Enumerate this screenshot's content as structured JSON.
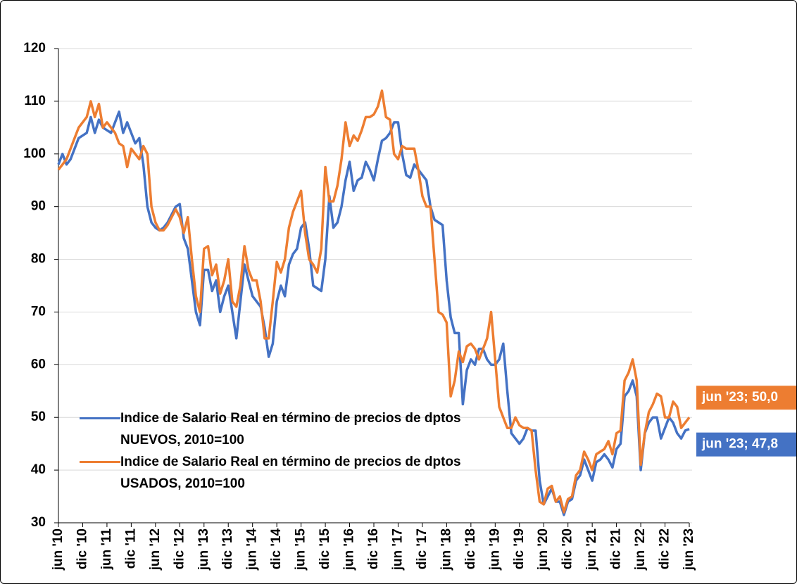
{
  "chart_data": {
    "type": "line",
    "categories": [
      "jun '10",
      null,
      null,
      null,
      null,
      null,
      "dic '10",
      null,
      null,
      null,
      null,
      null,
      "jun '11",
      null,
      null,
      null,
      null,
      null,
      "dic '11",
      null,
      null,
      null,
      null,
      null,
      "jun '12",
      null,
      null,
      null,
      null,
      null,
      "dic '12",
      null,
      null,
      null,
      null,
      null,
      "jun '13",
      null,
      null,
      null,
      null,
      null,
      "dic '13",
      null,
      null,
      null,
      null,
      null,
      "jun '14",
      null,
      null,
      null,
      null,
      null,
      "dic '14",
      null,
      null,
      null,
      null,
      null,
      "jun '15",
      null,
      null,
      null,
      null,
      null,
      "dic '15",
      null,
      null,
      null,
      null,
      null,
      "jun '16",
      null,
      null,
      null,
      null,
      null,
      "dic '16",
      null,
      null,
      null,
      null,
      null,
      "jun '17",
      null,
      null,
      null,
      null,
      null,
      "dic '17",
      null,
      null,
      null,
      null,
      null,
      "jun '18",
      null,
      null,
      null,
      null,
      null,
      "dic '18",
      null,
      null,
      null,
      null,
      null,
      "jun '19",
      null,
      null,
      null,
      null,
      null,
      "dic '19",
      null,
      null,
      null,
      null,
      null,
      "jun '20",
      null,
      null,
      null,
      null,
      null,
      "dic '20",
      null,
      null,
      null,
      null,
      null,
      "jun '21",
      null,
      null,
      null,
      null,
      null,
      "dic '21",
      null,
      null,
      null,
      null,
      null,
      "jun '22",
      null,
      null,
      null,
      null,
      null,
      "dic '22",
      null,
      null,
      null,
      null,
      null,
      "jun '23"
    ],
    "series": [
      {
        "name": "Indice de Salario Real en término de precios de dptos NUEVOS, 2010=100",
        "color": "#4472c4",
        "values": [
          98,
          100,
          98,
          99,
          101,
          103,
          103.5,
          104,
          107,
          104,
          106.5,
          105,
          104.5,
          104,
          106,
          108,
          104,
          106,
          104,
          102,
          103,
          98,
          90,
          87,
          86,
          85.5,
          86,
          87,
          88.5,
          90,
          90.5,
          84,
          82,
          76,
          70,
          67.5,
          78,
          78,
          74,
          76,
          70,
          73,
          75,
          70,
          65,
          72,
          79,
          76,
          73,
          72,
          71,
          67,
          61.5,
          64,
          72,
          75,
          73,
          79,
          81,
          82,
          86,
          87,
          82,
          75,
          74.5,
          74,
          80,
          92,
          86,
          87,
          90,
          95,
          98.5,
          93,
          95,
          95.5,
          98.5,
          97,
          95,
          99,
          102.5,
          103,
          104,
          106,
          106,
          100,
          96,
          95.5,
          98,
          97,
          96,
          95,
          90,
          87.5,
          87,
          86.5,
          76,
          69,
          66,
          66,
          52.5,
          59,
          61,
          60,
          63,
          63,
          61,
          60,
          60,
          61,
          64,
          55,
          47,
          46,
          45,
          46,
          48,
          47.5,
          47.5,
          38,
          33.5,
          35,
          36.5,
          34,
          34,
          31.5,
          34,
          34.5,
          38,
          39,
          42,
          40,
          38,
          41.5,
          42,
          43,
          42,
          40.5,
          44,
          45,
          54,
          55,
          57,
          54,
          40,
          47,
          49,
          50,
          50,
          46,
          48,
          50,
          49,
          47,
          46,
          47.5,
          47.8
        ],
        "value_labels": [
          null,
          null,
          null,
          null,
          null,
          null,
          null,
          null,
          null,
          null,
          null,
          null,
          null,
          null,
          null,
          null,
          null,
          null,
          null,
          null,
          null,
          null,
          null,
          null,
          null,
          null,
          null,
          null,
          null,
          null,
          null,
          null,
          null,
          null,
          null,
          null,
          null,
          null,
          null,
          null,
          null,
          null,
          null,
          null,
          null,
          null,
          null,
          null,
          null,
          null,
          null,
          null,
          null,
          null,
          null,
          null,
          null,
          null,
          null,
          null,
          null,
          null,
          null,
          null,
          null,
          null,
          null,
          null,
          null,
          null,
          null,
          null,
          null,
          null,
          null,
          null,
          null,
          null,
          null,
          null,
          null,
          null,
          null,
          null,
          null,
          null,
          null,
          null,
          null,
          null,
          null,
          null,
          null,
          null,
          null,
          null,
          null,
          null,
          null,
          null,
          null,
          null,
          null,
          null,
          null,
          null,
          null,
          null,
          null,
          null,
          null,
          null,
          null,
          null,
          null,
          null,
          null,
          null,
          null,
          null,
          null,
          null,
          null,
          null,
          null,
          null,
          null,
          null,
          null,
          null,
          null,
          null,
          null,
          null,
          null,
          null,
          null,
          null,
          null,
          null,
          null,
          null,
          null,
          null,
          null,
          null,
          null,
          null,
          null,
          null,
          null,
          null,
          null,
          null,
          null,
          null,
          "jun '23; 47,8"
        ]
      },
      {
        "name": "Indice de Salario Real en término de precios de dptos USADOS, 2010=100",
        "color": "#ed7d31",
        "values": [
          97,
          98,
          99,
          101,
          103,
          105,
          106,
          107,
          110,
          107,
          109.5,
          105,
          106,
          105,
          104,
          102,
          101.5,
          97.5,
          101,
          100,
          99,
          101.5,
          100,
          90,
          87,
          85.5,
          85.5,
          86.5,
          88,
          89.5,
          88,
          85,
          88,
          80,
          73,
          70,
          82,
          82.5,
          77,
          79,
          73.5,
          76,
          80,
          72,
          71,
          75,
          82.5,
          78,
          76,
          76,
          72,
          65,
          65,
          72,
          79.5,
          77.5,
          80,
          86,
          89,
          91,
          93,
          85,
          80,
          79,
          77.5,
          82,
          97.5,
          91,
          91,
          94,
          99,
          106,
          101.5,
          103.5,
          102.5,
          104.5,
          107,
          107,
          107.5,
          109,
          112,
          107,
          106.5,
          100,
          99,
          101.5,
          101,
          101,
          101,
          97,
          92,
          90,
          90,
          80,
          70,
          69.5,
          68,
          54,
          57,
          62.5,
          60.5,
          63.5,
          64,
          63,
          61,
          63,
          65,
          70,
          61,
          52,
          50,
          48,
          48,
          50,
          48.5,
          48,
          48,
          47.5,
          40,
          34,
          33.5,
          36.5,
          37,
          34,
          35,
          32,
          34.5,
          35,
          39,
          40,
          43.5,
          42,
          40,
          43,
          43.5,
          44,
          45.5,
          43,
          47,
          47.5,
          57,
          58.5,
          61,
          57,
          41,
          47,
          51,
          52.5,
          54.5,
          54,
          50,
          50,
          53,
          52,
          48,
          49,
          50
        ],
        "value_labels": [
          null,
          null,
          null,
          null,
          null,
          null,
          null,
          null,
          null,
          null,
          null,
          null,
          null,
          null,
          null,
          null,
          null,
          null,
          null,
          null,
          null,
          null,
          null,
          null,
          null,
          null,
          null,
          null,
          null,
          null,
          null,
          null,
          null,
          null,
          null,
          null,
          null,
          null,
          null,
          null,
          null,
          null,
          null,
          null,
          null,
          null,
          null,
          null,
          null,
          null,
          null,
          null,
          null,
          null,
          null,
          null,
          null,
          null,
          null,
          null,
          null,
          null,
          null,
          null,
          null,
          null,
          null,
          null,
          null,
          null,
          null,
          null,
          null,
          null,
          null,
          null,
          null,
          null,
          null,
          null,
          null,
          null,
          null,
          null,
          null,
          null,
          null,
          null,
          null,
          null,
          null,
          null,
          null,
          null,
          null,
          null,
          null,
          null,
          null,
          null,
          null,
          null,
          null,
          null,
          null,
          null,
          null,
          null,
          null,
          null,
          null,
          null,
          null,
          null,
          null,
          null,
          null,
          null,
          null,
          null,
          null,
          null,
          null,
          null,
          null,
          null,
          null,
          null,
          null,
          null,
          null,
          null,
          null,
          null,
          null,
          null,
          null,
          null,
          null,
          null,
          null,
          null,
          null,
          null,
          null,
          null,
          null,
          null,
          null,
          null,
          null,
          null,
          null,
          null,
          null,
          null,
          "jun '23; 50,0"
        ]
      }
    ],
    "ylim": [
      30,
      120
    ],
    "yticks": [
      30,
      40,
      50,
      60,
      70,
      80,
      90,
      100,
      110,
      120
    ],
    "grid": true,
    "legend": "lower left"
  }
}
